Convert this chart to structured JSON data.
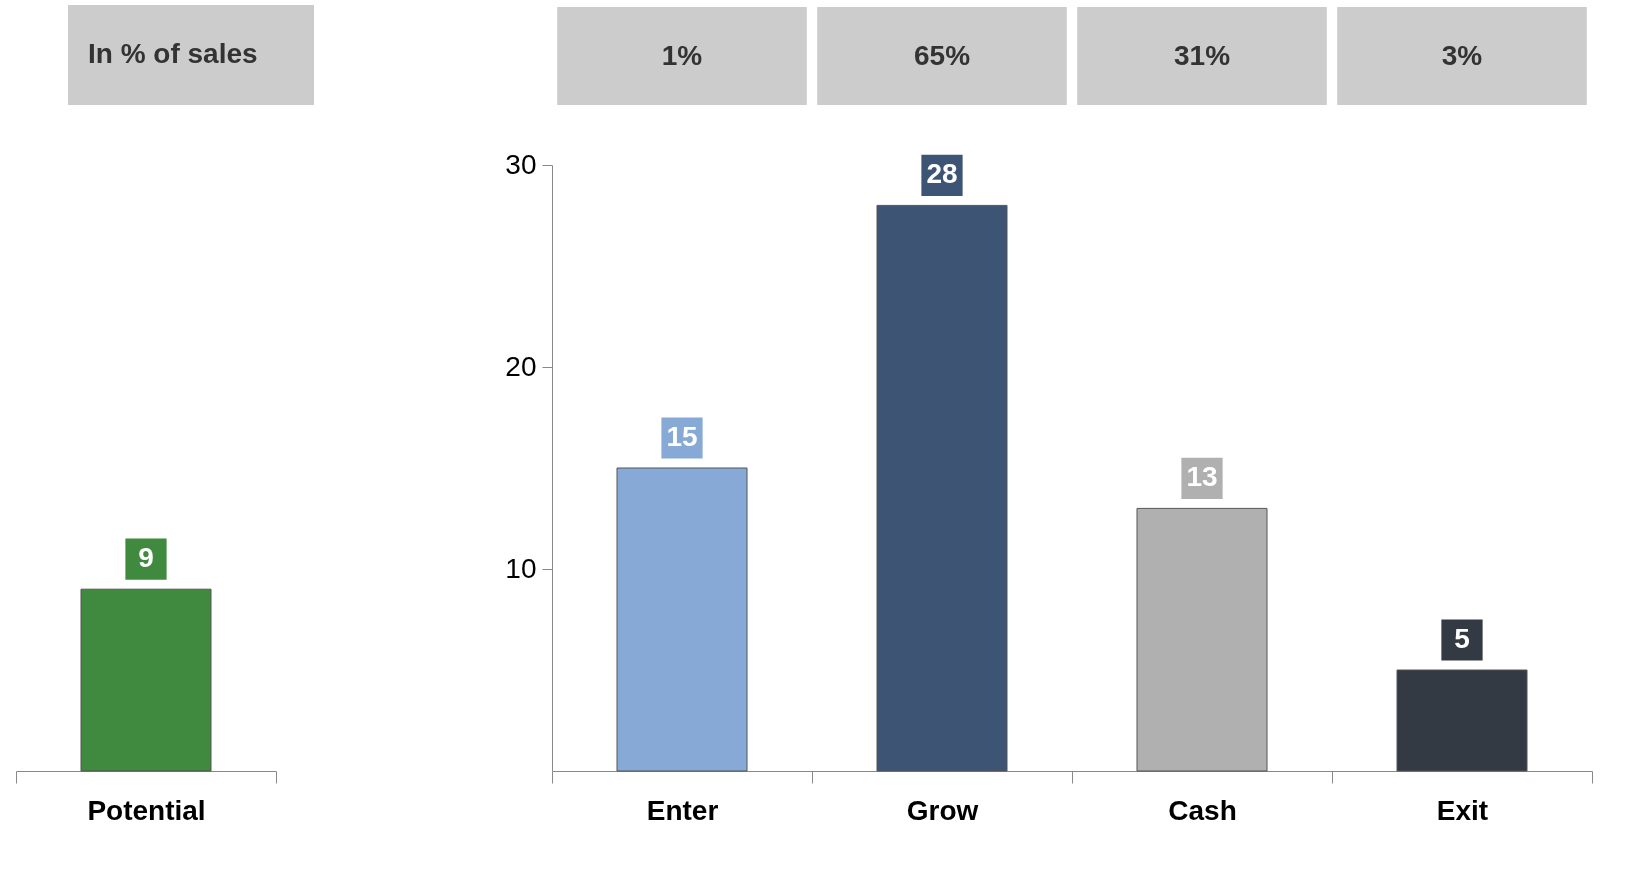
{
  "chart_data": [
    {
      "type": "bar",
      "categories": [
        "Potential"
      ],
      "values": [
        9
      ],
      "colors": [
        "#3f8a3f"
      ],
      "ylim": [
        0,
        30
      ],
      "tick_labels": "x",
      "data_labels": true,
      "annotations": [
        "In % of sales"
      ]
    },
    {
      "type": "bar",
      "categories": [
        "Enter",
        "Grow",
        "Cash",
        "Exit"
      ],
      "values": [
        15,
        28,
        13,
        5
      ],
      "colors": [
        "#86a9d6",
        "#3d5475",
        "#b0b0b0",
        "#333a44"
      ],
      "ylim": [
        0,
        30
      ],
      "yticks": [
        10,
        20,
        30
      ],
      "data_labels": true,
      "annotations": [
        "1%",
        "65%",
        "31%",
        "3%"
      ]
    }
  ]
}
